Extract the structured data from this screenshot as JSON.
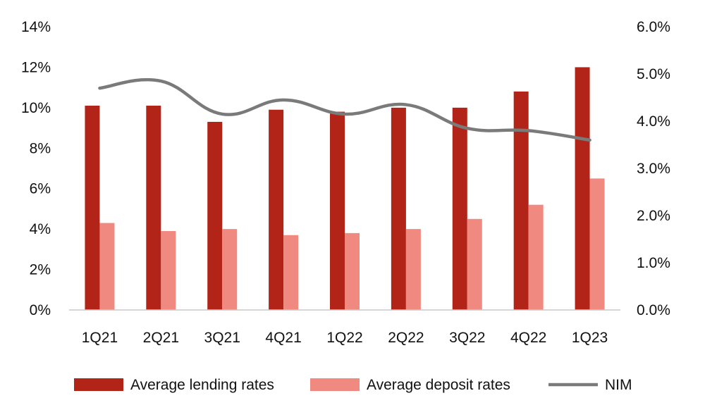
{
  "chart_data": {
    "type": "bar",
    "categories": [
      "1Q21",
      "2Q21",
      "3Q21",
      "4Q21",
      "1Q22",
      "2Q22",
      "3Q22",
      "4Q22",
      "1Q23"
    ],
    "series": [
      {
        "name": "Average lending rates",
        "type": "bar",
        "axis": "left",
        "color": "#b22418",
        "values": [
          10.1,
          10.1,
          9.3,
          9.9,
          9.8,
          10.0,
          10.0,
          10.8,
          12.0
        ]
      },
      {
        "name": "Average deposit rates",
        "type": "bar",
        "axis": "left",
        "color": "#f08a80",
        "values": [
          4.3,
          3.9,
          4.0,
          3.7,
          3.8,
          4.0,
          4.5,
          5.2,
          6.5
        ]
      },
      {
        "name": "NIM",
        "type": "line",
        "axis": "right",
        "color": "#7a7a7a",
        "values": [
          4.7,
          4.85,
          4.15,
          4.45,
          4.15,
          4.35,
          3.85,
          3.8,
          3.6
        ]
      }
    ],
    "y_left": {
      "ylim": [
        0,
        14
      ],
      "ticks": [
        "0%",
        "2%",
        "4%",
        "6%",
        "8%",
        "10%",
        "12%",
        "14%"
      ]
    },
    "y_right": {
      "ylim": [
        0,
        6
      ],
      "ticks": [
        "0.0%",
        "1.0%",
        "2.0%",
        "3.0%",
        "4.0%",
        "5.0%",
        "6.0%"
      ]
    },
    "title": "",
    "xlabel": "",
    "ylabel": "",
    "grid": false,
    "legend_position": "bottom"
  }
}
